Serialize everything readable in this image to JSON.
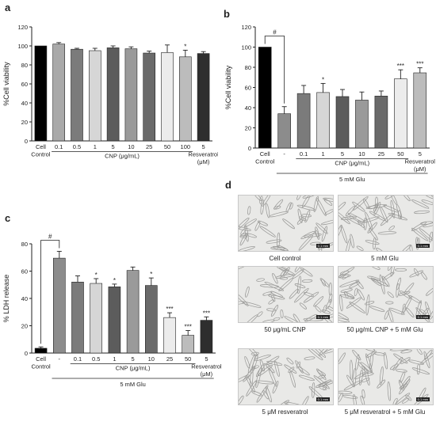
{
  "panel_letters": {
    "a": "a",
    "b": "b",
    "c": "c",
    "d": "d"
  },
  "chart_data": [
    {
      "panel": "a",
      "type": "bar",
      "ylabel": "%Cell viability",
      "ylim": [
        0,
        120
      ],
      "yticks": [
        0,
        20,
        40,
        60,
        80,
        100,
        120
      ],
      "categories": [
        "Cell Control",
        "0.1",
        "0.5",
        "1",
        "5",
        "10",
        "25",
        "50",
        "100",
        "5"
      ],
      "values": [
        100,
        102,
        96.5,
        95,
        98,
        97,
        92.5,
        93,
        88.5,
        92
      ],
      "errors": [
        0,
        1.5,
        1,
        2.5,
        2,
        2,
        2,
        8,
        7,
        2
      ],
      "colors": [
        "#000000",
        "#a9a9a9",
        "#7b7b7b",
        "#d6d6d6",
        "#5c5c5c",
        "#9a9a9a",
        "#6a6a6a",
        "#ececec",
        "#bcbcbc",
        "#2e2e2e"
      ],
      "significance": [
        "",
        "",
        "",
        "",
        "",
        "",
        "",
        "",
        "*",
        ""
      ],
      "group_labels": [
        {
          "text": "CNP (μg/mL)",
          "from": 1,
          "to": 8
        }
      ],
      "extra_labels": [
        {
          "text": "Resveratrol",
          "at": 9,
          "row": 2
        },
        {
          "text": "(μM)",
          "at": 9,
          "row": 3
        }
      ],
      "grid": false
    },
    {
      "panel": "b",
      "type": "bar",
      "ylabel": "%Cell viability",
      "ylim": [
        0,
        120
      ],
      "yticks": [
        0,
        20,
        40,
        60,
        80,
        100,
        120
      ],
      "categories": [
        "Cell Control",
        "-",
        "0.1",
        "1",
        "5",
        "10",
        "25",
        "50",
        "5"
      ],
      "values": [
        100,
        34,
        54,
        55,
        51,
        47.5,
        51.5,
        68.5,
        74.5
      ],
      "errors": [
        0,
        7,
        8,
        9,
        7,
        8,
        5,
        9,
        5
      ],
      "colors": [
        "#000000",
        "#8c8c8c",
        "#7b7b7b",
        "#d6d6d6",
        "#5c5c5c",
        "#9a9a9a",
        "#6a6a6a",
        "#ececec",
        "#bcbcbc"
      ],
      "significance": [
        "",
        "",
        "",
        "*",
        "",
        "",
        "",
        "***",
        "***"
      ],
      "bracket": {
        "from": 0,
        "to": 1,
        "label": "#"
      },
      "group_labels": [
        {
          "text": "CNP (μg/mL)",
          "from": 2,
          "to": 7
        }
      ],
      "treatment_label": {
        "text": "5 mM Glu",
        "from": 1,
        "to": 8
      },
      "extra_labels": [
        {
          "text": "Resveratrol",
          "at": 8,
          "row": 2
        },
        {
          "text": "(μM)",
          "at": 8,
          "row": 3
        }
      ],
      "grid": false
    },
    {
      "panel": "c",
      "type": "bar",
      "ylabel": "% LDH release",
      "ylim": [
        0,
        80
      ],
      "yticks": [
        0,
        20,
        40,
        60,
        80
      ],
      "categories": [
        "Cell Control",
        "-",
        "0.1",
        "0.5",
        "1",
        "5",
        "10",
        "25",
        "50",
        "5"
      ],
      "values": [
        3.5,
        69.5,
        52,
        51,
        48.5,
        60.5,
        49.5,
        26,
        13,
        24
      ],
      "errors": [
        1,
        5,
        4.5,
        3.5,
        2,
        2.5,
        5.5,
        3.5,
        3.5,
        2.5
      ],
      "colors": [
        "#000000",
        "#8c8c8c",
        "#7b7b7b",
        "#d6d6d6",
        "#5c5c5c",
        "#9a9a9a",
        "#6a6a6a",
        "#ececec",
        "#bcbcbc",
        "#2e2e2e"
      ],
      "significance": [
        "",
        "",
        "",
        "*",
        "*",
        "",
        "*",
        "***",
        "***",
        "***"
      ],
      "bracket": {
        "from": 0,
        "to": 1,
        "label": "#"
      },
      "group_labels": [
        {
          "text": "CNP (μg/mL)",
          "from": 2,
          "to": 8
        }
      ],
      "treatment_label": {
        "text": "5 mM Glu",
        "from": 1,
        "to": 9
      },
      "extra_labels": [
        {
          "text": "Resveratrol",
          "at": 9,
          "row": 2
        },
        {
          "text": "(μM)",
          "at": 9,
          "row": 3
        }
      ],
      "grid": false
    }
  ],
  "micrographs": [
    {
      "caption": "Cell control"
    },
    {
      "caption": "5 mM Glu"
    },
    {
      "caption": "50 μg/mL CNP"
    },
    {
      "caption": "50 μg/mL CNP + 5 mM Glu"
    },
    {
      "caption": "5 μM resveratrol"
    },
    {
      "caption": "5 μM resveratrol + 5 mM Glu"
    }
  ],
  "scale_bar_label": "0.1 mm"
}
